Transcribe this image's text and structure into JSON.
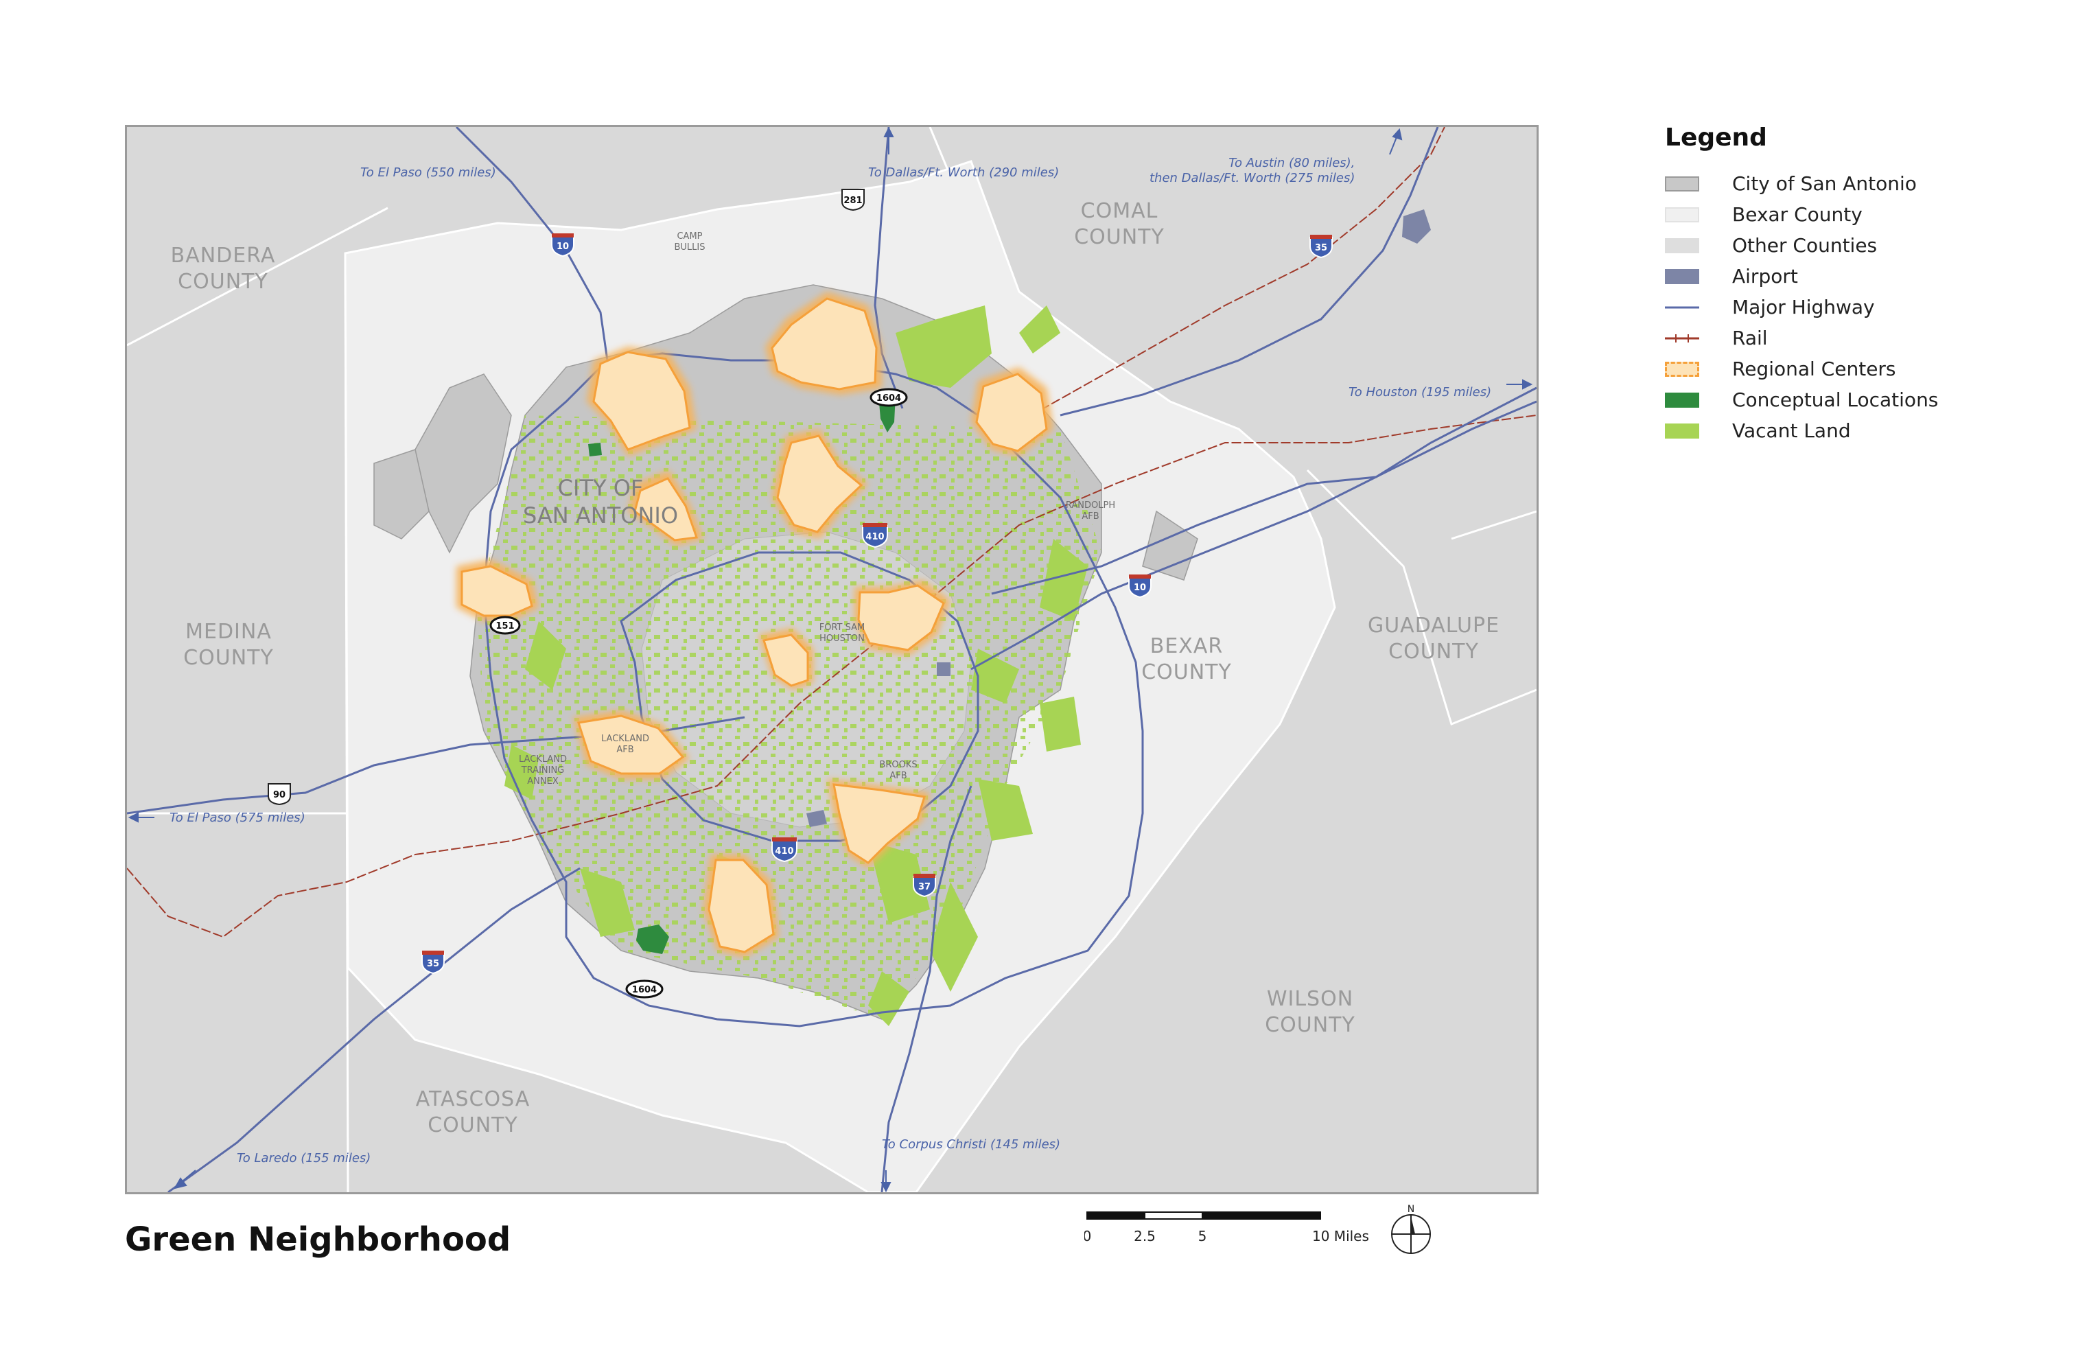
{
  "title": "Green Neighborhood",
  "legend": {
    "title": "Legend",
    "items": [
      {
        "label": "City of San Antonio",
        "swatch": "fill",
        "color": "#c8c8c8",
        "border": "#9a9a9a"
      },
      {
        "label": "Bexar County",
        "swatch": "fill",
        "color": "#f0f0f0",
        "border": "#e2e2e2"
      },
      {
        "label": "Other Counties",
        "swatch": "fill",
        "color": "#dedede",
        "border": "#dedede"
      },
      {
        "label": "Airport",
        "swatch": "fill",
        "color": "#7d85a6",
        "border": "#7d85a6"
      },
      {
        "label": "Major Highway",
        "swatch": "line",
        "color": "#5a6aa8"
      },
      {
        "label": "Rail",
        "swatch": "rail",
        "color": "#a03a2a"
      },
      {
        "label": "Regional Centers",
        "swatch": "dashed",
        "color": "#fde3b8",
        "border": "#f5a03a"
      },
      {
        "label": "Conceptual Locations",
        "swatch": "fill",
        "color": "#2e8b3e",
        "border": "#2e8b3e"
      },
      {
        "label": "Vacant Land",
        "swatch": "fill",
        "color": "#a7d454",
        "border": "#a7d454"
      }
    ]
  },
  "counties": [
    "BANDERA\nCOUNTY",
    "COMAL\nCOUNTY",
    "MEDINA\nCOUNTY",
    "BEXAR\nCOUNTY",
    "GUADALUPE\nCOUNTY",
    "WILSON\nCOUNTY",
    "ATASCOSA\nCOUNTY"
  ],
  "city_label": "CITY OF\nSAN ANTONIO",
  "places": [
    "CAMP\nBULLIS",
    "RANDOLPH\nAFB",
    "FORT SAM\nHOUSTON",
    "LACKLAND\nAFB",
    "LACKLAND\nTRAINING\nANNEX",
    "BROOKS\nAFB"
  ],
  "directions": [
    "To El Paso (550 miles)",
    "To Dallas/Ft. Worth (290 miles)",
    "To Austin (80 miles),\nthen Dallas/Ft. Worth (275 miles)",
    "To Houston (195 miles)",
    "To El Paso (575 miles)",
    "To Laredo (155 miles)",
    "To Corpus Christi (145 miles)"
  ],
  "shields": [
    "10",
    "281",
    "35",
    "1604",
    "410",
    "10",
    "151",
    "90",
    "410",
    "37",
    "35",
    "1604"
  ],
  "scale": {
    "ticks": [
      "0",
      "2.5",
      "5",
      "10 Miles"
    ]
  },
  "north": "N",
  "colors": {
    "other_counties": "#d9d9d9",
    "bexar": "#efefef",
    "city": "#c6c6c6",
    "vacant": "#a7d454",
    "regional_fill": "#fde3b8",
    "regional_edge": "#f5a03a",
    "conceptual": "#2e8b3e",
    "highway": "#5a6aa8",
    "rail": "#a03a2a",
    "airport": "#7d85a6"
  }
}
